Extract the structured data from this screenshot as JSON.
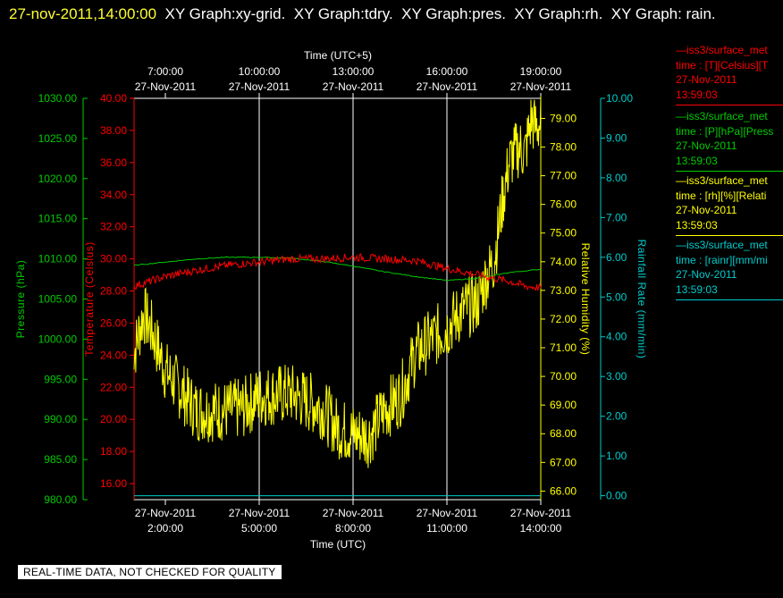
{
  "header": {
    "timestamp": "27-nov-2011,14:00:00",
    "rest": "  XY Graph:xy-grid.  XY Graph:tdry.  XY Graph:pres.  XY Graph:rh.  XY Graph: rain."
  },
  "colors": {
    "pressure": "#00cc00",
    "temperature": "#ff0000",
    "humidity": "#ffff00",
    "rain": "#00cccc",
    "grid": "#ffffff",
    "title_time": "#ffff33"
  },
  "chart_data": {
    "type": "line",
    "top_axis_title": "Time (UTC+5)",
    "top_ticks": [
      {
        "time": "7:00:00",
        "date": "27-Nov-2011"
      },
      {
        "time": "10:00:00",
        "date": "27-Nov-2011"
      },
      {
        "time": "13:00:00",
        "date": "27-Nov-2011"
      },
      {
        "time": "16:00:00",
        "date": "27-Nov-2011"
      },
      {
        "time": "19:00:00",
        "date": "27-Nov-2011"
      }
    ],
    "bottom_axis_title": "Time (UTC)",
    "bottom_ticks": [
      {
        "time": "2:00:00",
        "date": "27-Nov-2011"
      },
      {
        "time": "5:00:00",
        "date": "27-Nov-2011"
      },
      {
        "time": "8:00:00",
        "date": "27-Nov-2011"
      },
      {
        "time": "11:00:00",
        "date": "27-Nov-2011"
      },
      {
        "time": "14:00:00",
        "date": "27-Nov-2011"
      }
    ],
    "x_range_hours_utc": [
      1,
      14
    ],
    "grid_x_hours_utc": [
      5,
      8,
      11
    ],
    "axes": {
      "pressure": {
        "label": "Pressure (hPa)",
        "ylim": [
          980,
          1030
        ],
        "ticks": [
          "980.00",
          "985.00",
          "990.00",
          "995.00",
          "1000.00",
          "1005.00",
          "1010.00",
          "1015.00",
          "1020.00",
          "1025.00",
          "1030.00"
        ]
      },
      "temperature": {
        "label": "Temperature (Celsius)",
        "ylim": [
          15,
          40
        ],
        "ticks": [
          "16.00",
          "18.00",
          "20.00",
          "22.00",
          "24.00",
          "26.00",
          "28.00",
          "30.00",
          "32.00",
          "34.00",
          "36.00",
          "38.00",
          "40.00"
        ]
      },
      "humidity": {
        "label": "Relative Humidity (%)",
        "ylim": [
          65.7,
          79.7
        ],
        "ticks": [
          "66.00",
          "67.00",
          "68.00",
          "69.00",
          "70.00",
          "71.00",
          "72.00",
          "73.00",
          "74.00",
          "75.00",
          "76.00",
          "77.00",
          "78.00",
          "79.00"
        ]
      },
      "rain": {
        "label": "Rainfall Rate (mm/min)",
        "ylim": [
          -0.1,
          10
        ],
        "ticks": [
          "0.00",
          "1.00",
          "2.00",
          "3.00",
          "4.00",
          "5.00",
          "6.00",
          "7.00",
          "8.00",
          "9.00",
          "10.00"
        ]
      }
    },
    "series": [
      {
        "name": "temperature",
        "x": [
          1,
          2,
          3,
          4,
          5,
          6,
          7,
          8,
          9,
          10,
          11,
          12,
          13,
          13.5,
          14
        ],
        "y": [
          28.3,
          28.9,
          29.3,
          29.6,
          29.8,
          30.0,
          30.0,
          30.1,
          30.0,
          29.9,
          29.4,
          29.0,
          28.6,
          28.3,
          28.2
        ]
      },
      {
        "name": "pressure",
        "x": [
          1,
          2,
          3,
          4,
          5,
          6,
          7,
          8,
          9,
          10,
          11,
          12,
          13,
          14
        ],
        "y": [
          1009.2,
          1009.6,
          1010.0,
          1010.2,
          1010.2,
          1010.1,
          1009.7,
          1009.1,
          1008.4,
          1007.8,
          1007.3,
          1007.6,
          1008.3,
          1008.7
        ]
      },
      {
        "name": "humidity",
        "x": [
          1,
          1.3,
          1.6,
          2,
          2.5,
          3,
          3.5,
          4,
          4.5,
          5,
          6,
          7,
          7.5,
          8,
          8.5,
          9,
          9.5,
          10,
          10.5,
          11,
          11.5,
          12,
          12.2,
          12.5,
          12.8,
          13,
          13.3,
          13.5,
          13.7,
          13.8,
          14
        ],
        "y": [
          70.8,
          72.2,
          71.5,
          70.2,
          69.5,
          68.8,
          68.8,
          68.8,
          68.9,
          69.3,
          69.4,
          68.9,
          68.2,
          68.0,
          67.9,
          68.8,
          69.3,
          70.8,
          71.3,
          71.7,
          72.3,
          72.6,
          73.3,
          74.0,
          76.3,
          77.5,
          78.0,
          77.8,
          79.0,
          78.7,
          78.8
        ]
      },
      {
        "name": "rain",
        "x": [
          1,
          14
        ],
        "y": [
          0,
          0
        ]
      }
    ]
  },
  "legend": [
    {
      "title": "iss3/surface_met",
      "var": "time : [T][Celsius][T",
      "date": "27-Nov-2011",
      "time": "13:59:03"
    },
    {
      "title": "iss3/surface_met",
      "var": "time : [P][hPa][Press",
      "date": "27-Nov-2011",
      "time": "13:59:03"
    },
    {
      "title": "iss3/surface_met",
      "var": "time : [rh][%][Relati",
      "date": "27-Nov-2011",
      "time": "13:59:03"
    },
    {
      "title": "iss3/surface_met",
      "var": "time : [rainr][mm/mi",
      "date": "27-Nov-2011",
      "time": "13:59:03"
    }
  ],
  "footer": {
    "text": "REAL-TIME DATA, NOT CHECKED FOR QUALITY"
  }
}
